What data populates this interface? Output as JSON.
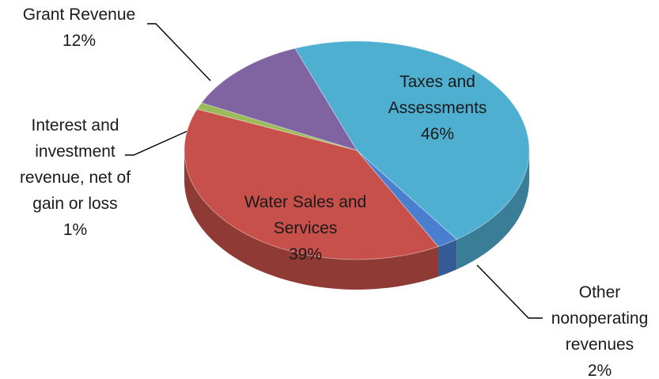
{
  "chart_data": {
    "type": "pie",
    "title": "",
    "slices": [
      {
        "label": "Taxes and Assessments",
        "value": 46,
        "value_label": "46%",
        "color": "#4FAFD0"
      },
      {
        "label": "Other nonoperating revenues",
        "value": 2,
        "value_label": "2%",
        "color": "#4A7FD0"
      },
      {
        "label": "Water Sales and Services",
        "value": 39,
        "value_label": "39%",
        "color": "#C8504A"
      },
      {
        "label": "Interest and investment revenue, net of gain or loss",
        "value": 1,
        "value_label": "1%",
        "color": "#9BBB59"
      },
      {
        "label": "Grant Revenue",
        "value": 12,
        "value_label": "12%",
        "color": "#8064A2"
      }
    ],
    "label_lines": {
      "0": [
        "Taxes and",
        "Assessments",
        "46%"
      ],
      "1": [
        "Other",
        "nonoperating",
        "revenues",
        "2%"
      ],
      "2": [
        "Water Sales and",
        "Services",
        "39%"
      ],
      "3": [
        "Interest and",
        "investment",
        "revenue, net of",
        "gain or loss",
        "1%"
      ],
      "4": [
        "Grant Revenue",
        "12%"
      ]
    },
    "legend": "none",
    "style": "3d"
  }
}
